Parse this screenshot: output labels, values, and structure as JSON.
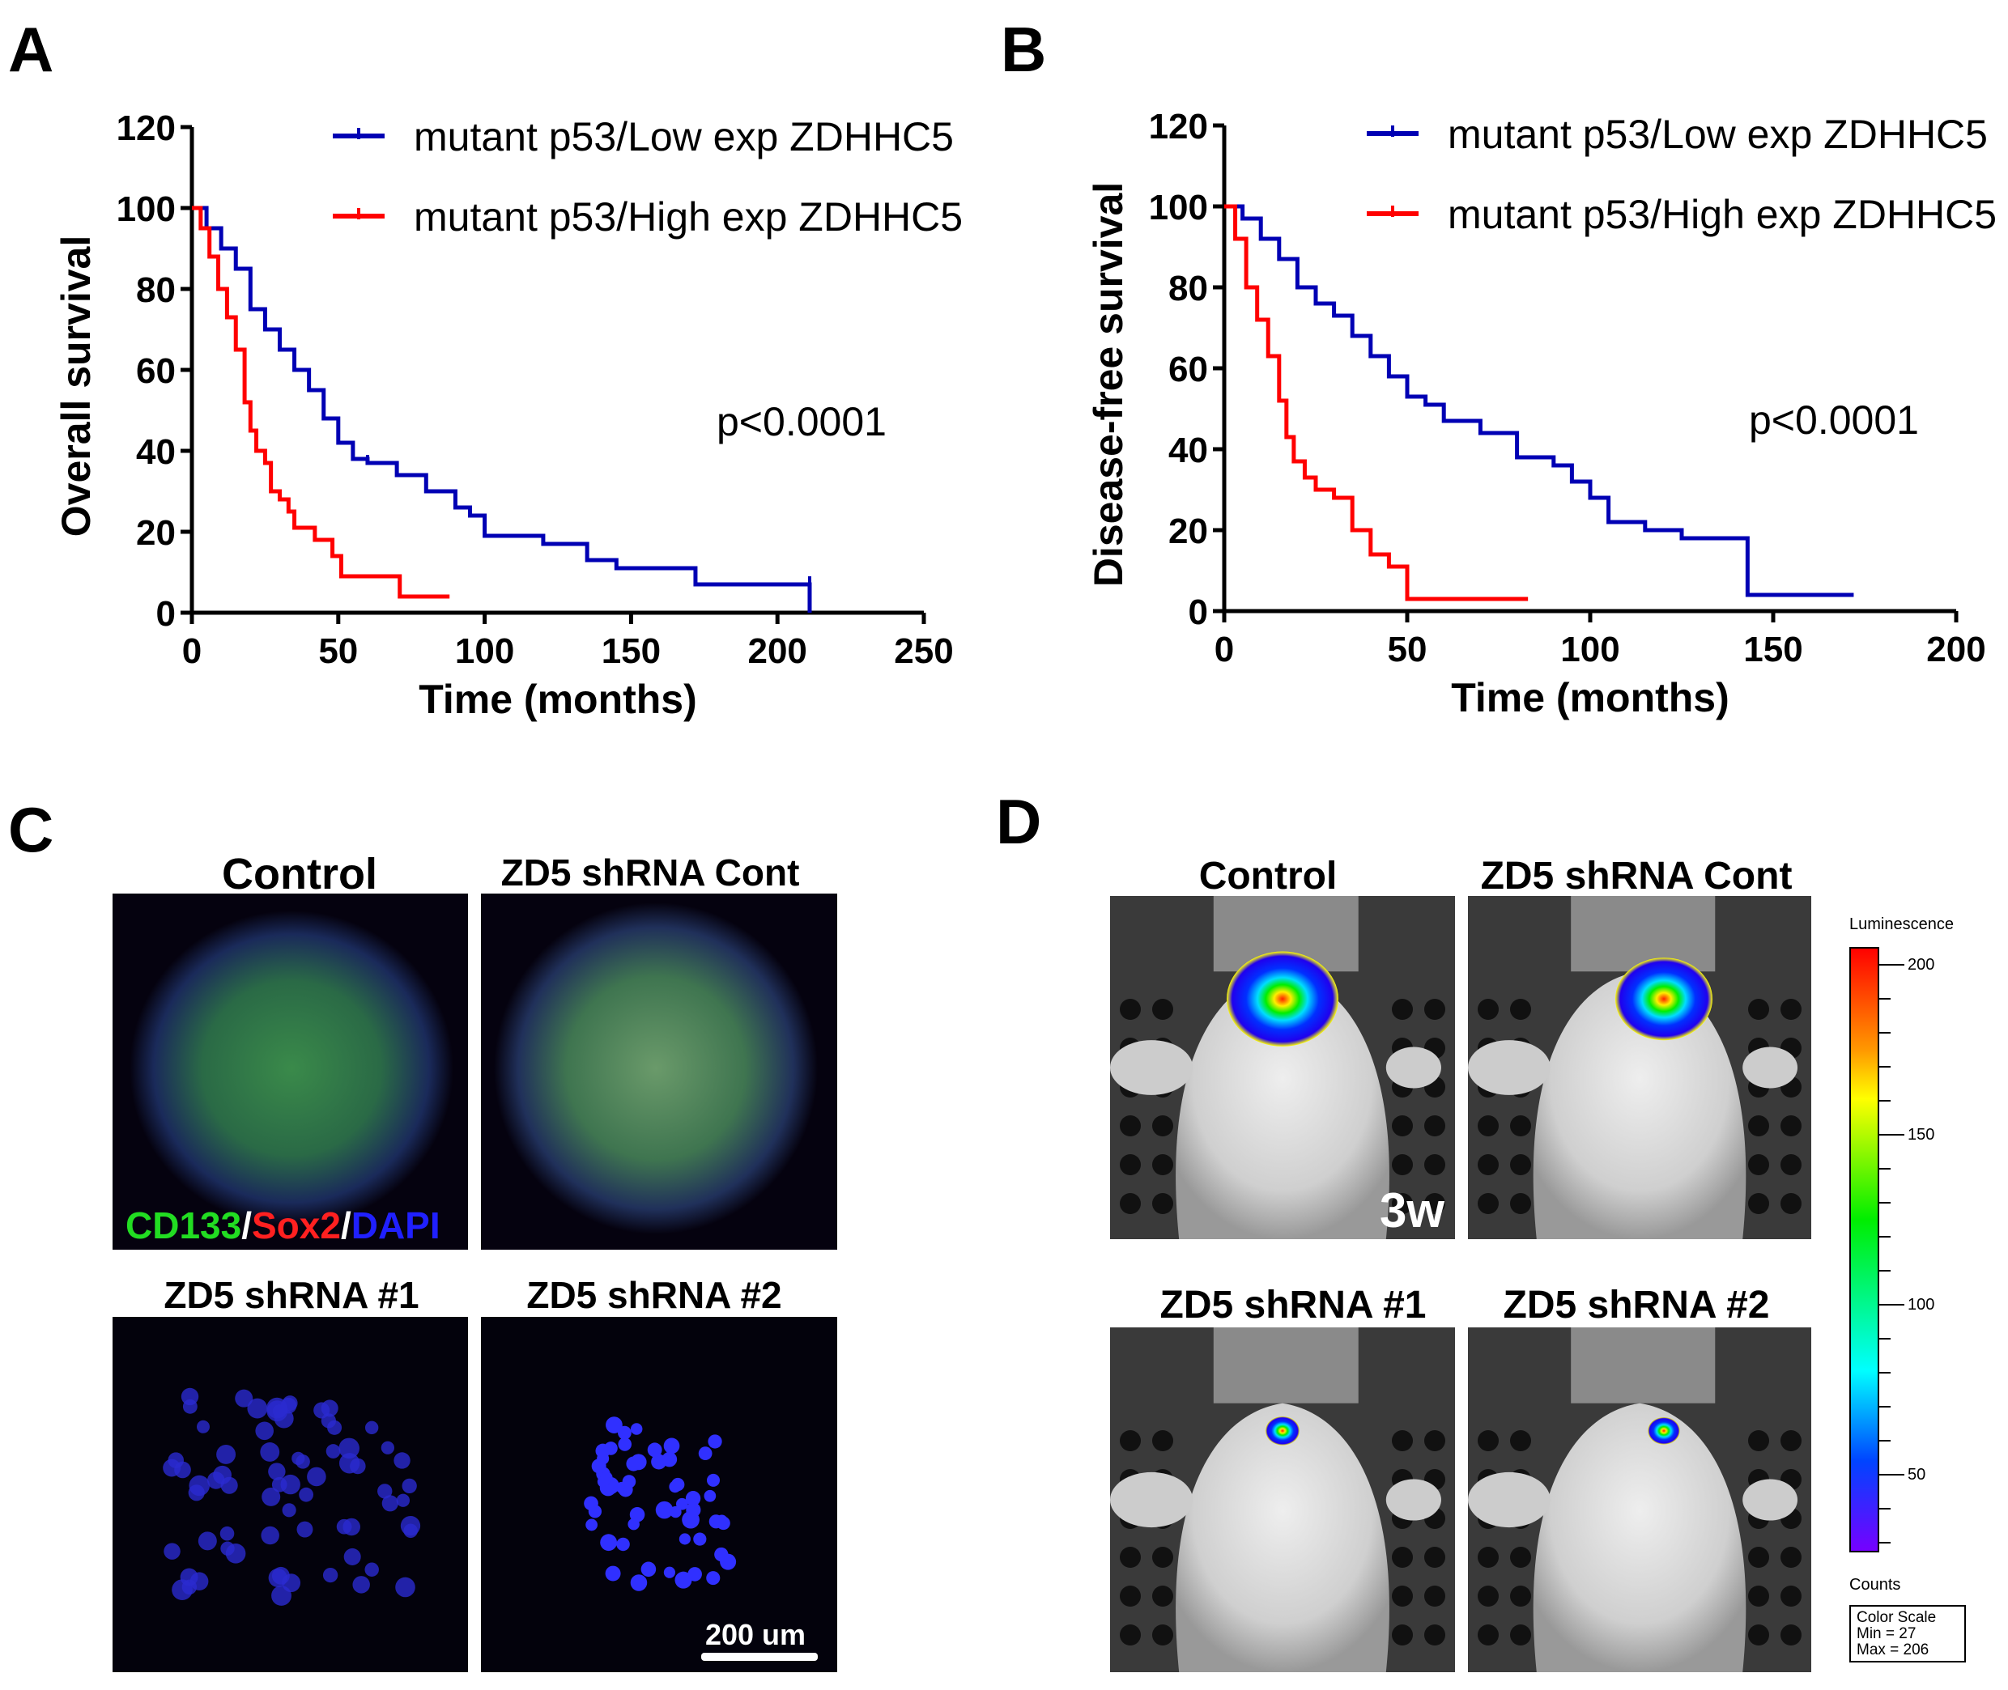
{
  "panels": {
    "a": "A",
    "b": "B",
    "c": "C",
    "d": "D"
  },
  "chart_data": [
    {
      "type": "line",
      "subtype": "kaplan-meier step",
      "xlabel": "Time (months)",
      "ylabel": "Overall survival",
      "xlim": [
        0,
        250
      ],
      "ylim": [
        0,
        120
      ],
      "xticks": [
        0,
        50,
        100,
        150,
        200,
        250
      ],
      "yticks": [
        0,
        20,
        40,
        60,
        80,
        100,
        120
      ],
      "annotation": "p<0.0001",
      "legend_position": "top-right",
      "series": [
        {
          "name": "mutant p53/Low exp ZDHHC5",
          "color": "#0000b4",
          "points": [
            [
              0,
              100
            ],
            [
              5,
              95
            ],
            [
              10,
              90
            ],
            [
              15,
              85
            ],
            [
              20,
              75
            ],
            [
              25,
              70
            ],
            [
              30,
              65
            ],
            [
              35,
              60
            ],
            [
              40,
              55
            ],
            [
              45,
              48
            ],
            [
              50,
              42
            ],
            [
              55,
              38
            ],
            [
              60,
              37
            ],
            [
              70,
              34
            ],
            [
              80,
              30
            ],
            [
              90,
              26
            ],
            [
              95,
              24
            ],
            [
              100,
              19
            ],
            [
              120,
              17
            ],
            [
              135,
              13
            ],
            [
              145,
              11
            ],
            [
              172,
              7
            ],
            [
              211,
              7
            ],
            [
              211,
              0
            ]
          ]
        },
        {
          "name": "mutant p53/High exp ZDHHC5",
          "color": "#ff0000",
          "points": [
            [
              0,
              100
            ],
            [
              3,
              95
            ],
            [
              6,
              88
            ],
            [
              9,
              80
            ],
            [
              12,
              73
            ],
            [
              15,
              65
            ],
            [
              18,
              52
            ],
            [
              20,
              45
            ],
            [
              22,
              40
            ],
            [
              25,
              37
            ],
            [
              27,
              30
            ],
            [
              30,
              28
            ],
            [
              33,
              25
            ],
            [
              35,
              21
            ],
            [
              42,
              18
            ],
            [
              48,
              14
            ],
            [
              51,
              9
            ],
            [
              70,
              9
            ],
            [
              71,
              4
            ],
            [
              88,
              4
            ]
          ]
        }
      ]
    },
    {
      "type": "line",
      "subtype": "kaplan-meier step",
      "xlabel": "Time (months)",
      "ylabel": "Disease-free survival",
      "xlim": [
        0,
        200
      ],
      "ylim": [
        0,
        120
      ],
      "xticks": [
        0,
        50,
        100,
        150,
        200
      ],
      "yticks": [
        0,
        20,
        40,
        60,
        80,
        100,
        120
      ],
      "annotation": "p<0.0001",
      "legend_position": "top-right",
      "series": [
        {
          "name": "mutant p53/Low exp ZDHHC5",
          "color": "#0000b4",
          "points": [
            [
              0,
              100
            ],
            [
              5,
              97
            ],
            [
              10,
              92
            ],
            [
              15,
              87
            ],
            [
              20,
              80
            ],
            [
              25,
              76
            ],
            [
              30,
              73
            ],
            [
              35,
              68
            ],
            [
              40,
              63
            ],
            [
              45,
              58
            ],
            [
              50,
              53
            ],
            [
              55,
              51
            ],
            [
              60,
              47
            ],
            [
              70,
              44
            ],
            [
              80,
              38
            ],
            [
              90,
              36
            ],
            [
              95,
              32
            ],
            [
              100,
              28
            ],
            [
              105,
              22
            ],
            [
              115,
              20
            ],
            [
              125,
              18
            ],
            [
              142,
              18
            ],
            [
              143,
              4
            ],
            [
              172,
              4
            ]
          ]
        },
        {
          "name": "mutant p53/High exp ZDHHC5",
          "color": "#ff0000",
          "points": [
            [
              0,
              100
            ],
            [
              3,
              92
            ],
            [
              6,
              80
            ],
            [
              9,
              72
            ],
            [
              12,
              63
            ],
            [
              15,
              52
            ],
            [
              17,
              43
            ],
            [
              19,
              37
            ],
            [
              22,
              33
            ],
            [
              25,
              30
            ],
            [
              30,
              28
            ],
            [
              35,
              20
            ],
            [
              40,
              14
            ],
            [
              45,
              11
            ],
            [
              50,
              3
            ],
            [
              83,
              3
            ]
          ]
        }
      ]
    }
  ],
  "panel_c": {
    "titles": [
      "Control",
      "ZD5 shRNA Cont",
      "ZD5 shRNA #1",
      "ZD5 shRNA #2"
    ],
    "stain": {
      "cd133": "CD133",
      "sep1": "/",
      "sox2": "Sox2",
      "sep2": "/",
      "dapi": "DAPI"
    },
    "stain_colors": {
      "cd133": "#22dd22",
      "sox2": "#ff2020",
      "dapi": "#2020ff"
    },
    "scale_bar": "200 um"
  },
  "panel_d": {
    "titles": [
      "Control",
      "ZD5 shRNA Cont",
      "ZD5 shRNA #1",
      "ZD5 shRNA #2"
    ],
    "timepoint": "3w",
    "colorbar": {
      "title": "Luminescence",
      "ticks": [
        "200",
        "150",
        "100",
        "50"
      ],
      "units": "Counts",
      "scale_title": "Color Scale",
      "min": "Min = 27",
      "max": "Max = 206"
    }
  }
}
